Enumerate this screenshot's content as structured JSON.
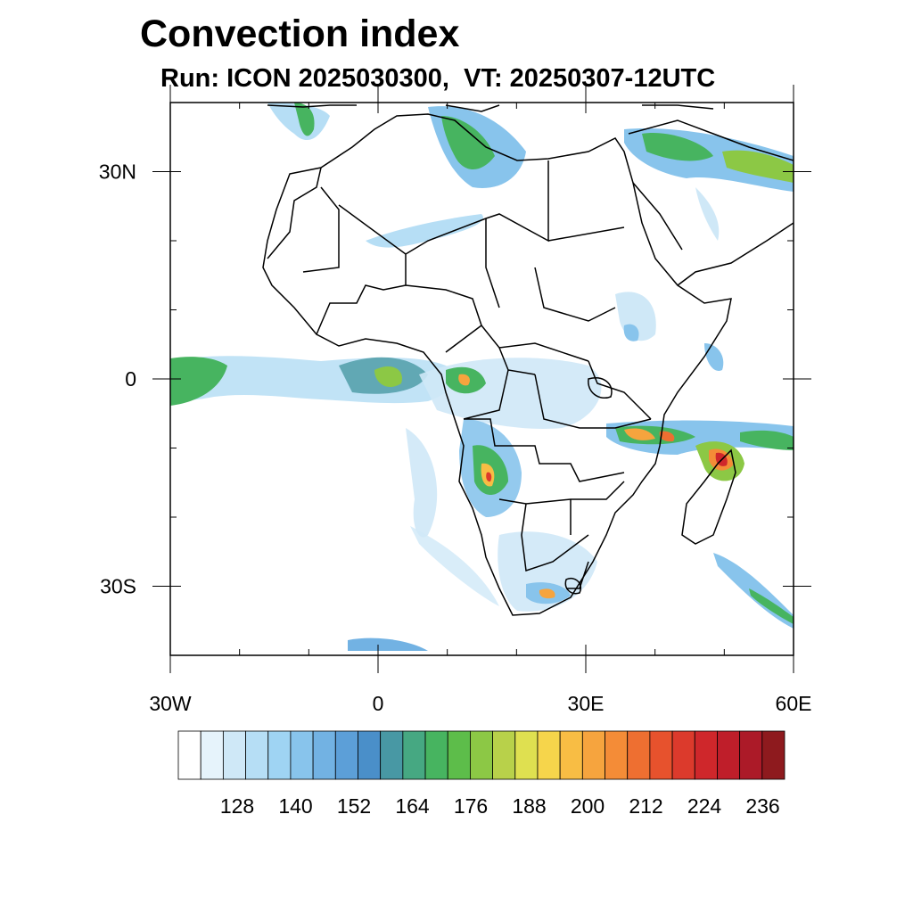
{
  "title": "Convection index",
  "subtitle": "Run: ICON 2025030300,  VT: 20250307-12UTC",
  "map": {
    "lon_range": [
      -30,
      60
    ],
    "lat_range": [
      -40,
      40
    ],
    "y_ticks": [
      {
        "lat": 30,
        "label": "30N"
      },
      {
        "lat": 0,
        "label": "0"
      },
      {
        "lat": -30,
        "label": "30S"
      }
    ],
    "x_ticks": [
      {
        "lon": -30,
        "label": "30W"
      },
      {
        "lon": 0,
        "label": "0"
      },
      {
        "lon": 30,
        "label": "30E"
      },
      {
        "lon": 60,
        "label": "60E"
      }
    ]
  },
  "colorbar": {
    "colors": [
      "#ffffff",
      "#e6f3fb",
      "#cfe8f7",
      "#b6def5",
      "#9fd4f3",
      "#88c4ec",
      "#72b2e3",
      "#5c9fd8",
      "#4a8fc9",
      "#4898a4",
      "#46a882",
      "#47b460",
      "#5dbd4a",
      "#8cc845",
      "#b8d14a",
      "#dfe050",
      "#f6d54b",
      "#f8bd44",
      "#f6a43e",
      "#f48c37",
      "#ee6f31",
      "#e7522d",
      "#dc3a2c",
      "#cf272b",
      "#bf1e2a",
      "#ac1a28",
      "#8e1a1e"
    ],
    "labels": [
      "128",
      "140",
      "152",
      "164",
      "176",
      "188",
      "200",
      "212",
      "224",
      "236"
    ]
  }
}
